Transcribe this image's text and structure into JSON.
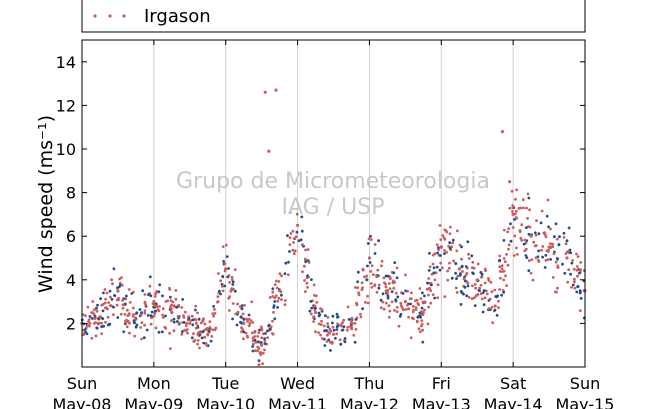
{
  "chart_data": {
    "type": "scatter",
    "ylabel": "Wind speed (ms⁻¹)",
    "ylim": [
      0,
      15
    ],
    "yticks": [
      2,
      4,
      6,
      8,
      10,
      12,
      14
    ],
    "xticks": [
      {
        "day": "Sun",
        "date": "May-08"
      },
      {
        "day": "Mon",
        "date": "May-09"
      },
      {
        "day": "Tue",
        "date": "May-10"
      },
      {
        "day": "Wed",
        "date": "May-11"
      },
      {
        "day": "Thu",
        "date": "May-12"
      },
      {
        "day": "Fri",
        "date": "May-13"
      },
      {
        "day": "Sat",
        "date": "May-14"
      },
      {
        "day": "Sun",
        "date": "May-15"
      }
    ],
    "grid": "vertical",
    "legend": {
      "placement": "top",
      "entries": [
        "Irgason"
      ]
    },
    "colors": {
      "primary": "#cd5c5c",
      "secondary": "#1f4e8c"
    },
    "watermark": [
      "Grupo de Micrometeorologia",
      "IAG / USP"
    ],
    "series": [
      {
        "name": "Irgason",
        "color": "#cd5c5c",
        "x_day_index": [
          0.0,
          0.25,
          0.5,
          0.75,
          1.0,
          1.25,
          1.5,
          1.75,
          2.0,
          2.25,
          2.5,
          2.75,
          3.0,
          3.25,
          3.5,
          3.75,
          4.0,
          4.25,
          4.5,
          4.75,
          5.0,
          5.25,
          5.5,
          5.75,
          6.0,
          6.25,
          6.5,
          6.75,
          7.0
        ],
        "y": [
          2.0,
          2.3,
          3.5,
          2.2,
          3.0,
          2.5,
          2.0,
          1.5,
          4.5,
          2.0,
          1.0,
          3.5,
          6.5,
          2.5,
          1.5,
          1.8,
          5.0,
          3.5,
          3.0,
          2.5,
          5.5,
          4.5,
          4.0,
          2.8,
          7.0,
          6.0,
          5.5,
          5.0,
          3.5
        ]
      }
    ]
  }
}
